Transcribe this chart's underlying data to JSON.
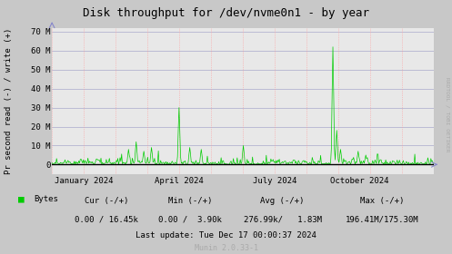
{
  "title": "Disk throughput for /dev/nvme0n1 - by year",
  "ylabel": "Pr second read (-) / write (+)",
  "right_label": "RRDTOOL / TOBI OETIKER",
  "xlabel_ticks": [
    "January 2024",
    "April 2024",
    "July 2024",
    "October 2024"
  ],
  "xlabel_tick_positions": [
    0.083,
    0.333,
    0.583,
    0.806
  ],
  "ylim": [
    -5000000,
    72000000
  ],
  "yticks": [
    0,
    10000000,
    20000000,
    30000000,
    40000000,
    50000000,
    60000000,
    70000000
  ],
  "ytick_labels": [
    "0",
    "10 M",
    "20 M",
    "30 M",
    "40 M",
    "50 M",
    "60 M",
    "70 M"
  ],
  "bg_color": "#c8c8c8",
  "plot_bg_color": "#e8e8e8",
  "grid_color_h": "#aaaacc",
  "grid_color_v": "#ff9999",
  "line_color": "#00cc00",
  "zero_line_color": "#000000",
  "legend_label": "Bytes",
  "legend_color": "#00cc00",
  "cur_text": "Cur (-/+)",
  "cur_val": "0.00 / 16.45k",
  "min_text": "Min (-/+)",
  "min_val": "0.00 /  3.90k",
  "avg_text": "Avg (-/+)",
  "avg_val": "276.99k/   1.83M",
  "max_text": "Max (-/+)",
  "max_val": "196.41M/175.30M",
  "last_update": "Last update: Tue Dec 17 00:00:37 2024",
  "munin_version": "Munin 2.0.33-1",
  "n_points": 500,
  "v_grid_positions": [
    0.0,
    0.083,
    0.167,
    0.25,
    0.333,
    0.417,
    0.5,
    0.583,
    0.667,
    0.75,
    0.833,
    0.917,
    1.0
  ]
}
